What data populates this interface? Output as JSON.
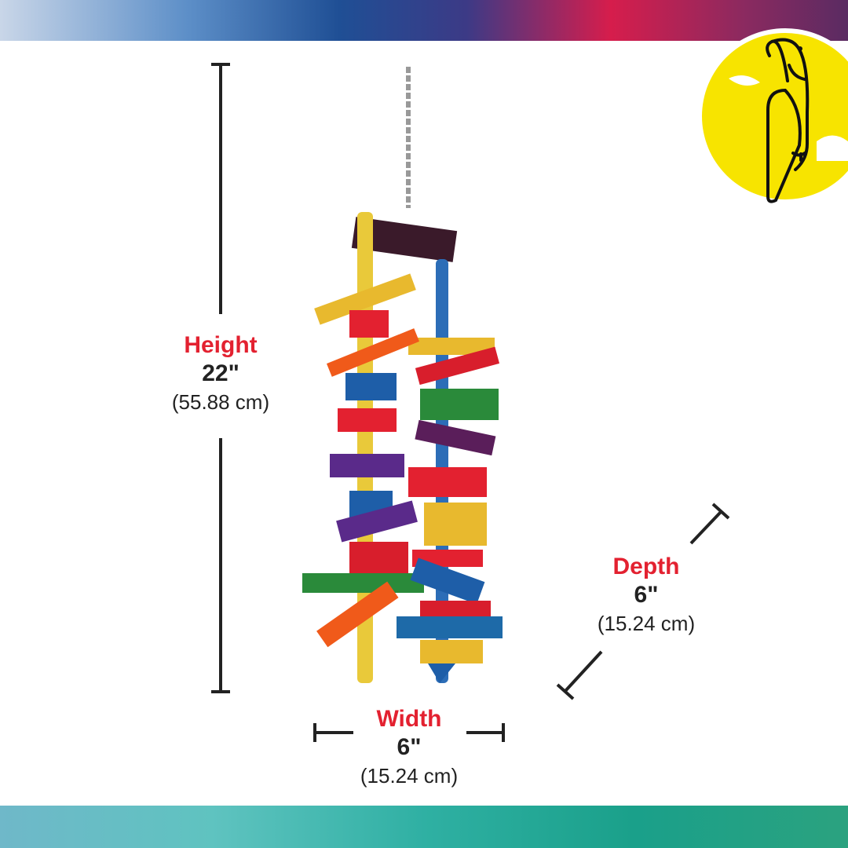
{
  "colors": {
    "accent_red": "#e32130",
    "logo_yellow": "#f7e400",
    "line": "#222222"
  },
  "logo": {
    "icon": "parrot-icon"
  },
  "height": {
    "label": "Height",
    "imperial": "22\"",
    "metric": "(55.88 cm)"
  },
  "width": {
    "label": "Width",
    "imperial": "6\"",
    "metric": "(15.24 cm)"
  },
  "depth": {
    "label": "Depth",
    "imperial": "6\"",
    "metric": "(15.24 cm)"
  }
}
